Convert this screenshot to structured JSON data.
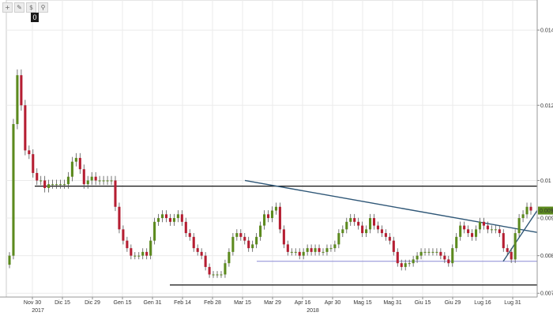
{
  "toolbar": {
    "buttons": [
      {
        "name": "crosshair-tool-button",
        "glyph": "+"
      },
      {
        "name": "draw-tool-button",
        "glyph": "✎"
      },
      {
        "name": "fibonacci-tool-button",
        "glyph": "$"
      },
      {
        "name": "zoom-tool-button",
        "glyph": "⚲"
      }
    ],
    "badge": "0"
  },
  "colors": {
    "up": "#5c8a1e",
    "down": "#b51e32",
    "wick": "#555555",
    "trendline": "#2f5777",
    "support": "#8a8ad6",
    "level": "#111111",
    "grid": "#ebebeb",
    "last_price_bg": "#5c8a1e"
  },
  "chart_data": {
    "type": "candlestick",
    "title": "",
    "xlabel": "",
    "ylabel": "",
    "ylim": [
      0.0069,
      0.0148
    ],
    "y_ticks": [
      "0.014",
      "0.012",
      "0.01",
      "0.009",
      "0.008",
      "0.007"
    ],
    "last_price": "0.0092",
    "x_ticks": [
      "Nov 30",
      "Dic 15",
      "Dic 29",
      "Gen 15",
      "Gen 31",
      "Feb 14",
      "Feb 28",
      "Mar 15",
      "Mar 29",
      "Apr 16",
      "Apr 30",
      "Mag 15",
      "Mag 31",
      "Giu 15",
      "Giu 29",
      "Lug 16",
      "Lug 31"
    ],
    "year_labels": [
      "2017",
      "2018"
    ],
    "closes": [
      0.008,
      0.0115,
      0.0128,
      0.012,
      0.0108,
      0.0107,
      0.0102,
      0.01,
      0.01,
      0.0098,
      0.0099,
      0.0099,
      0.0099,
      0.0099,
      0.0099,
      0.0101,
      0.0105,
      0.0106,
      0.0103,
      0.0099,
      0.01,
      0.0101,
      0.01,
      0.01,
      0.01,
      0.01,
      0.01,
      0.0093,
      0.0087,
      0.0084,
      0.0082,
      0.008,
      0.008,
      0.008,
      0.0081,
      0.008,
      0.0084,
      0.0089,
      0.009,
      0.0091,
      0.009,
      0.0089,
      0.009,
      0.0091,
      0.0089,
      0.0086,
      0.0085,
      0.0082,
      0.0081,
      0.008,
      0.0077,
      0.0075,
      0.0075,
      0.0075,
      0.0075,
      0.0078,
      0.0081,
      0.0085,
      0.0086,
      0.0085,
      0.0084,
      0.0082,
      0.0083,
      0.0085,
      0.0088,
      0.0091,
      0.009,
      0.0092,
      0.0093,
      0.0087,
      0.0083,
      0.0081,
      0.0081,
      0.0081,
      0.008,
      0.0081,
      0.0082,
      0.0081,
      0.0082,
      0.0081,
      0.0081,
      0.0082,
      0.0082,
      0.0083,
      0.0086,
      0.0087,
      0.0089,
      0.009,
      0.0089,
      0.0088,
      0.0086,
      0.0087,
      0.009,
      0.0088,
      0.0087,
      0.0086,
      0.0085,
      0.0084,
      0.0081,
      0.0078,
      0.0077,
      0.0078,
      0.0078,
      0.0079,
      0.008,
      0.0081,
      0.0081,
      0.0081,
      0.0081,
      0.0081,
      0.008,
      0.0079,
      0.0078,
      0.0082,
      0.0085,
      0.0088,
      0.0087,
      0.0086,
      0.0085,
      0.0087,
      0.0089,
      0.0088,
      0.0087,
      0.0087,
      0.0087,
      0.0086,
      0.0082,
      0.0081,
      0.0079,
      0.0086,
      0.009,
      0.0091,
      0.0093,
      0.0092
    ]
  }
}
